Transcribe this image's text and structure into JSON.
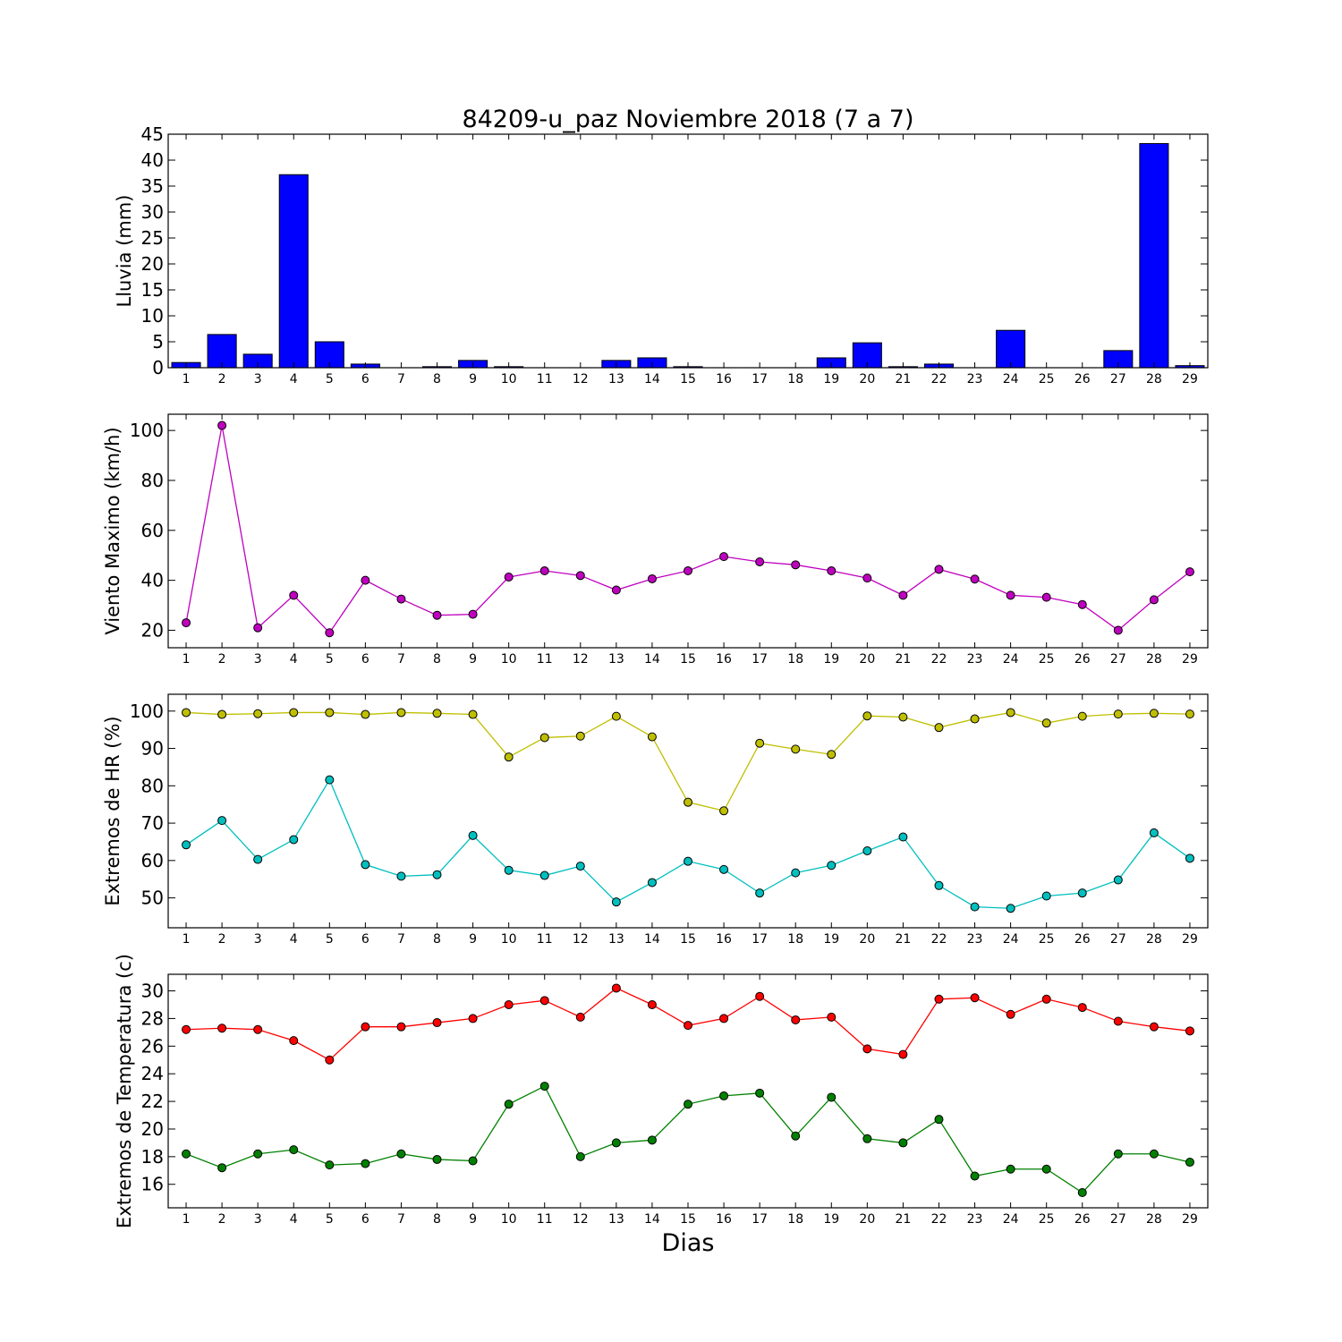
{
  "title": "84209-u_paz Noviembre 2018  (7 a 7)",
  "xlabel": "Dias",
  "chart_data": [
    {
      "type": "bar",
      "ylabel": "Lluvia (mm)",
      "ylim": [
        0,
        45
      ],
      "yticks": [
        0,
        5,
        10,
        15,
        20,
        25,
        30,
        35,
        40,
        45
      ],
      "categories": [
        1,
        2,
        3,
        4,
        5,
        6,
        7,
        8,
        9,
        10,
        11,
        12,
        13,
        14,
        15,
        16,
        17,
        18,
        19,
        20,
        21,
        22,
        23,
        24,
        25,
        26,
        27,
        28,
        29
      ],
      "series": [
        {
          "values": [
            1.0,
            6.4,
            2.6,
            37.2,
            5.0,
            0.7,
            0.0,
            0.2,
            1.4,
            0.2,
            0.0,
            0.0,
            1.4,
            1.9,
            0.2,
            0.0,
            0.0,
            0.0,
            1.9,
            4.8,
            0.2,
            0.7,
            0.0,
            7.2,
            0.0,
            0.0,
            3.3,
            43.2,
            0.4
          ],
          "color": "#0000ff"
        }
      ],
      "grid": false
    },
    {
      "type": "line",
      "ylabel": "Viento Maximo (km/h)",
      "ylim": [
        13,
        106.5
      ],
      "yticks": [
        20,
        40,
        60,
        80,
        100
      ],
      "x": [
        1,
        2,
        3,
        4,
        5,
        6,
        7,
        8,
        9,
        10,
        11,
        12,
        13,
        14,
        15,
        16,
        17,
        18,
        19,
        20,
        21,
        22,
        23,
        24,
        25,
        26,
        27,
        28,
        29
      ],
      "series": [
        {
          "values": [
            23,
            102,
            21,
            34,
            19,
            40,
            32.5,
            26,
            26.4,
            41.3,
            43.8,
            41.9,
            36.1,
            40.6,
            43.8,
            49.5,
            47.4,
            46.2,
            43.8,
            40.9,
            34,
            44.4,
            40.5,
            34,
            33.2,
            30.3,
            20,
            32.2,
            43.4
          ],
          "color": "#bf00bf"
        }
      ],
      "grid": false
    },
    {
      "type": "line",
      "ylabel": "Extremos de HR (%)",
      "ylim": [
        42,
        104.5
      ],
      "yticks": [
        50,
        60,
        70,
        80,
        90,
        100
      ],
      "x": [
        1,
        2,
        3,
        4,
        5,
        6,
        7,
        8,
        9,
        10,
        11,
        12,
        13,
        14,
        15,
        16,
        17,
        18,
        19,
        20,
        21,
        22,
        23,
        24,
        25,
        26,
        27,
        28,
        29
      ],
      "series": [
        {
          "values": [
            99.6,
            99.1,
            99.3,
            99.6,
            99.6,
            99.1,
            99.6,
            99.4,
            99.1,
            87.7,
            92.9,
            93.3,
            98.6,
            93.1,
            75.6,
            73.3,
            91.4,
            89.8,
            88.4,
            98.7,
            98.4,
            95.6,
            97.9,
            99.6,
            96.8,
            98.6,
            99.2,
            99.4,
            99.2
          ],
          "color": "#bfbf00"
        },
        {
          "values": [
            64.2,
            70.7,
            60.3,
            65.6,
            81.6,
            58.9,
            55.8,
            56.2,
            66.7,
            57.4,
            56,
            58.5,
            48.9,
            54.1,
            59.8,
            57.6,
            51.3,
            56.7,
            58.7,
            62.6,
            66.3,
            53.3,
            47.6,
            47.2,
            50.5,
            51.3,
            54.8,
            67.4,
            60.6
          ],
          "color": "#00bfbf"
        }
      ],
      "grid": false
    },
    {
      "type": "line",
      "ylabel": "Extremos de Temperatura (c)",
      "ylim": [
        14.3,
        31.2
      ],
      "yticks": [
        16,
        18,
        20,
        22,
        24,
        26,
        28,
        30
      ],
      "x": [
        1,
        2,
        3,
        4,
        5,
        6,
        7,
        8,
        9,
        10,
        11,
        12,
        13,
        14,
        15,
        16,
        17,
        18,
        19,
        20,
        21,
        22,
        23,
        24,
        25,
        26,
        27,
        28,
        29
      ],
      "series": [
        {
          "values": [
            27.2,
            27.3,
            27.2,
            26.4,
            25.0,
            27.4,
            27.4,
            27.7,
            28.0,
            29.0,
            29.3,
            28.1,
            30.2,
            29.0,
            27.5,
            28.0,
            29.6,
            27.9,
            28.1,
            25.8,
            25.4,
            29.4,
            29.5,
            28.3,
            29.4,
            28.8,
            27.8,
            27.4,
            27.1
          ],
          "color": "#ff0000"
        },
        {
          "values": [
            18.2,
            17.2,
            18.2,
            18.5,
            17.4,
            17.5,
            18.2,
            17.8,
            17.7,
            21.8,
            23.1,
            18.0,
            19.0,
            19.2,
            21.8,
            22.4,
            22.6,
            19.5,
            22.3,
            19.3,
            19.0,
            20.7,
            16.6,
            17.1,
            17.1,
            15.4,
            18.2,
            18.2,
            17.6
          ],
          "color": "#008000"
        }
      ],
      "grid": false
    }
  ]
}
